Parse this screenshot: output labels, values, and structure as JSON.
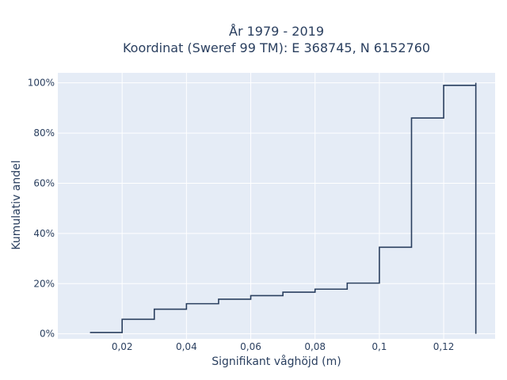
{
  "chart_data": {
    "type": "line",
    "line_shape": "step",
    "title_line1": "År 1979 - 2019",
    "title_line2": "Koordinat (Sweref 99 TM): E 368745, N 6152760",
    "xlabel": "Signifikant våghöjd (m)",
    "ylabel": "Kumulativ andel",
    "xlim": [
      -0.0,
      0.136
    ],
    "ylim": [
      -2,
      104
    ],
    "x_ticks": [
      {
        "v": 0.02,
        "label": "0,02"
      },
      {
        "v": 0.04,
        "label": "0,04"
      },
      {
        "v": 0.06,
        "label": "0,06"
      },
      {
        "v": 0.08,
        "label": "0,08"
      },
      {
        "v": 0.1,
        "label": "0,1"
      },
      {
        "v": 0.12,
        "label": "0,12"
      }
    ],
    "y_ticks": [
      {
        "v": 0,
        "label": "0%"
      },
      {
        "v": 20,
        "label": "20%"
      },
      {
        "v": 40,
        "label": "40%"
      },
      {
        "v": 60,
        "label": "60%"
      },
      {
        "v": 80,
        "label": "80%"
      },
      {
        "v": 100,
        "label": "100%"
      }
    ],
    "grid": true,
    "colors": {
      "line": "#2a3f5f",
      "plot_bg": "#e5ecf6",
      "grid": "#ffffff"
    },
    "x": [
      0.01,
      0.02,
      0.03,
      0.04,
      0.05,
      0.06,
      0.07,
      0.08,
      0.09,
      0.1,
      0.11,
      0.12,
      0.13
    ],
    "values": [
      0.5,
      5.8,
      9.8,
      12.0,
      13.8,
      15.2,
      16.6,
      17.8,
      20.2,
      34.5,
      86.0,
      99.0,
      100.0
    ],
    "end_drop_to": 0
  }
}
